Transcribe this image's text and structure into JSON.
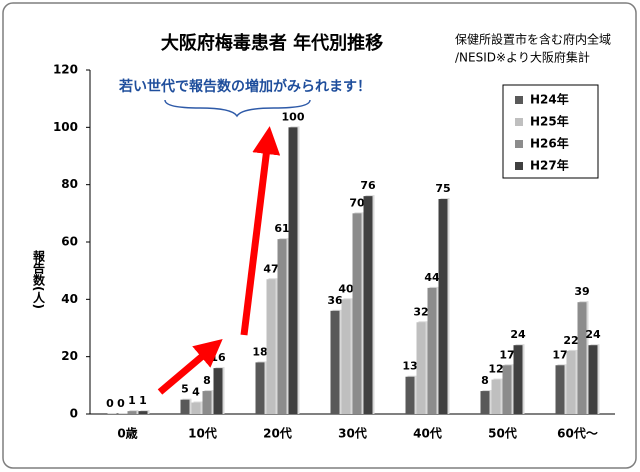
{
  "chart_data": {
    "type": "bar",
    "title": "大阪府梅毒患者 年代別推移",
    "notes": [
      "保健所設置市を含む府内全域",
      "/NESID※より大阪府集計"
    ],
    "annotation": "若い世代で報告数の増加がみられます！",
    "y_label": "報告数(人)",
    "categories": [
      "0歳",
      "10代",
      "20代",
      "30代",
      "40代",
      "50代",
      "60代〜"
    ],
    "series": [
      {
        "name": "H24年",
        "color": "#595959",
        "values": [
          0,
          5,
          18,
          36,
          13,
          8,
          17
        ]
      },
      {
        "name": "H25年",
        "color": "#bfbfbf",
        "values": [
          0,
          4,
          47,
          40,
          32,
          12,
          22
        ]
      },
      {
        "name": "H26年",
        "color": "#8c8c8c",
        "values": [
          1,
          8,
          61,
          70,
          44,
          17,
          39
        ]
      },
      {
        "name": "H27年",
        "color": "#404040",
        "values": [
          1,
          16,
          100,
          76,
          75,
          24,
          24
        ]
      }
    ],
    "ylim": [
      0,
      120
    ],
    "yticks": [
      0,
      20,
      40,
      60,
      80,
      100,
      120
    ],
    "grid": false,
    "legend": "top-right"
  }
}
